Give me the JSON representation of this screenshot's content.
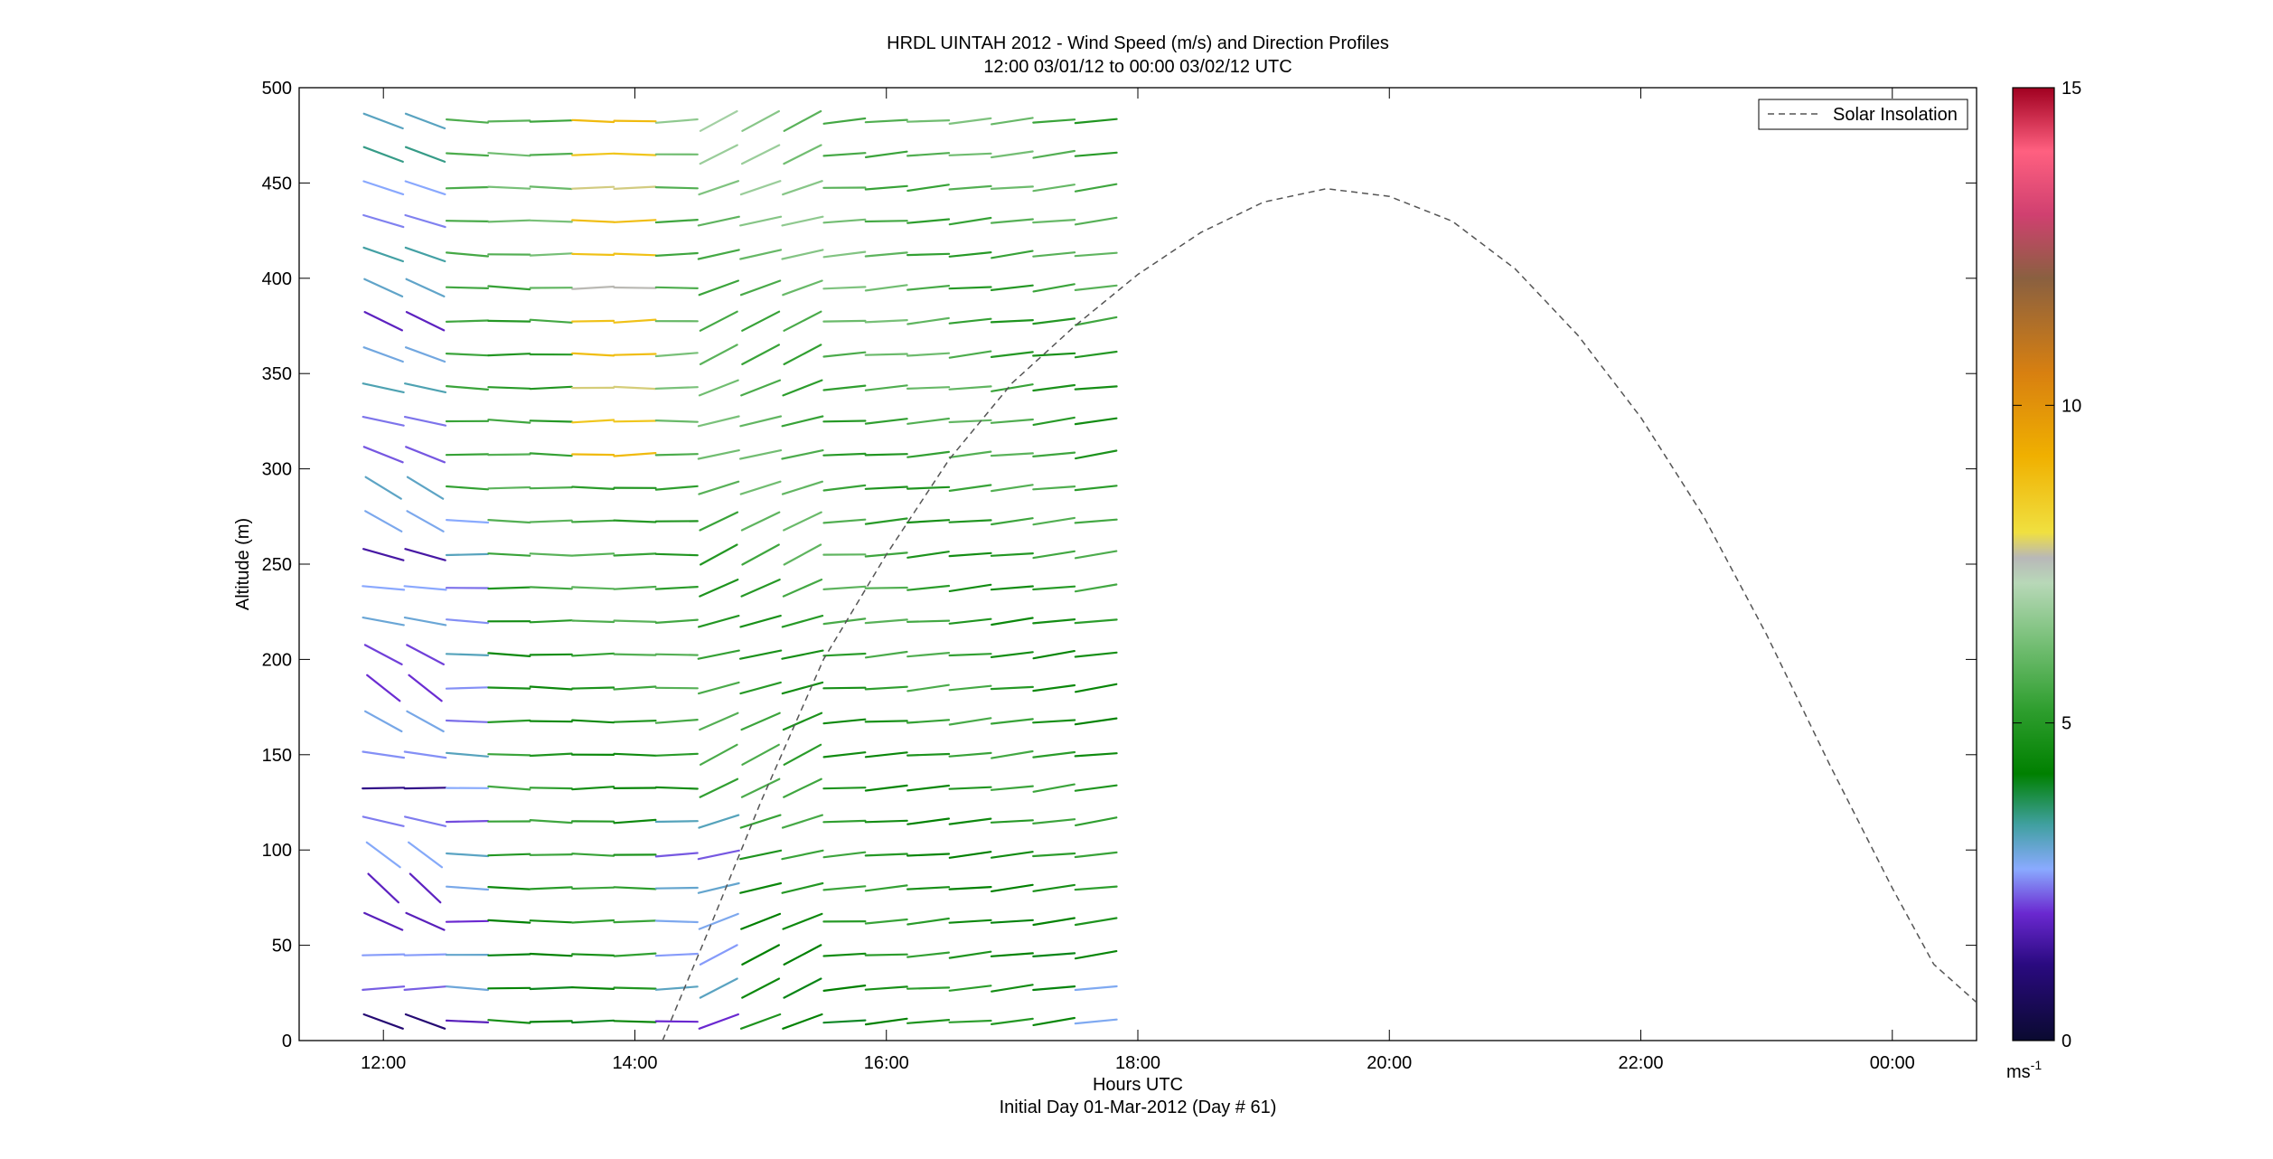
{
  "title_line1": "HRDL UINTAH 2012 - Wind Speed (m/s) and Direction Profiles",
  "title_line2": "12:00 03/01/12 to 00:00 03/02/12  UTC",
  "xlabel": "Hours UTC",
  "xlabel2": "Initial Day 01-Mar-2012 (Day # 61)",
  "ylabel": "Altitude (m)",
  "legend": {
    "label": "Solar Insolation"
  },
  "colorbar": {
    "unit_main": "ms",
    "unit_sup": "-1",
    "ticks": [
      "0",
      "5",
      "10",
      "15"
    ],
    "range": [
      0,
      15
    ]
  },
  "chart_data": {
    "type": "wind-barb-profile",
    "xlim": [
      11.33,
      24.67
    ],
    "ylim": [
      0,
      500
    ],
    "x_ticks": [
      12,
      14,
      16,
      18,
      20,
      22,
      24
    ],
    "x_tick_labels": [
      "12:00",
      "14:00",
      "16:00",
      "18:00",
      "20:00",
      "22:00",
      "00:00"
    ],
    "y_ticks": [
      0,
      50,
      100,
      150,
      200,
      250,
      300,
      350,
      400,
      450,
      500
    ],
    "y_tick_labels": [
      "0",
      "50",
      "100",
      "150",
      "200",
      "250",
      "300",
      "350",
      "400",
      "450",
      "500"
    ],
    "profile_times": [
      12.0,
      12.333,
      12.667,
      13.0,
      13.333,
      13.667,
      14.0,
      14.333,
      14.667,
      15.0,
      15.333,
      15.667,
      16.0,
      16.333,
      16.667,
      17.0,
      17.333,
      17.667
    ],
    "altitude_range": [
      10,
      492
    ],
    "altitude_spacing": 17.5,
    "colormap_stops": [
      {
        "v": 0,
        "c": "#0a0a30"
      },
      {
        "v": 1.2,
        "c": "#2a0a80"
      },
      {
        "v": 2.0,
        "c": "#6a28d0"
      },
      {
        "v": 2.7,
        "c": "#8aaaff"
      },
      {
        "v": 3.4,
        "c": "#40a0a0"
      },
      {
        "v": 4.2,
        "c": "#008000"
      },
      {
        "v": 5.2,
        "c": "#2e9e2e"
      },
      {
        "v": 6.3,
        "c": "#78c078"
      },
      {
        "v": 7.2,
        "c": "#b8d8b8"
      },
      {
        "v": 7.6,
        "c": "#b8b8b8"
      },
      {
        "v": 8.0,
        "c": "#f0e040"
      },
      {
        "v": 9.2,
        "c": "#f0b000"
      },
      {
        "v": 10.5,
        "c": "#d88010"
      },
      {
        "v": 12.0,
        "c": "#8a6040"
      },
      {
        "v": 13.0,
        "c": "#d04070"
      },
      {
        "v": 14.0,
        "c": "#ff6080"
      },
      {
        "v": 15.0,
        "c": "#a00020"
      }
    ],
    "solar_insolation": {
      "style": "dashed",
      "color": "#555555",
      "points": [
        [
          14.22,
          0
        ],
        [
          14.6,
          60
        ],
        [
          15.0,
          125
        ],
        [
          15.5,
          200
        ],
        [
          16.0,
          255
        ],
        [
          16.5,
          305
        ],
        [
          17.0,
          345
        ],
        [
          17.5,
          375
        ],
        [
          18.0,
          402
        ],
        [
          18.5,
          424
        ],
        [
          19.0,
          440
        ],
        [
          19.5,
          447
        ],
        [
          20.0,
          443
        ],
        [
          20.5,
          430
        ],
        [
          21.0,
          405
        ],
        [
          21.5,
          370
        ],
        [
          22.0,
          327
        ],
        [
          22.5,
          275
        ],
        [
          23.0,
          213
        ],
        [
          23.5,
          145
        ],
        [
          24.0,
          80
        ],
        [
          24.33,
          40
        ],
        [
          24.67,
          20
        ]
      ]
    }
  }
}
